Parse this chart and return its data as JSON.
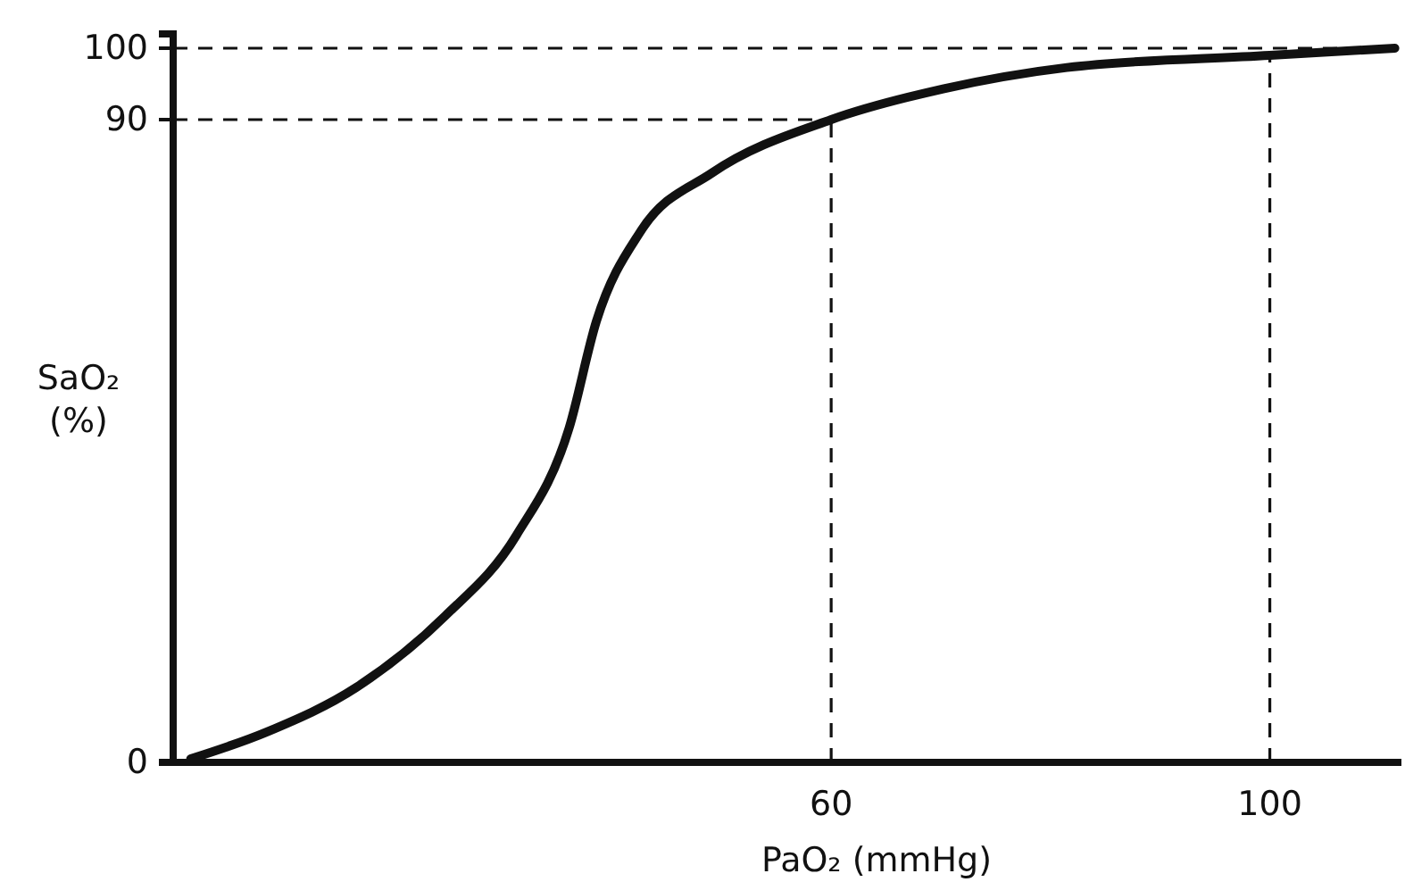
{
  "chart_data": {
    "type": "line",
    "xlabel": "PaO₂ (mmHg)",
    "ylabel": "SaO₂ (%)",
    "xlim": [
      0,
      112
    ],
    "ylim": [
      0,
      102
    ],
    "xticks": [
      60,
      100
    ],
    "yticks": [
      0,
      90,
      100
    ],
    "x": [
      1.6,
      8.6,
      16.7,
      24.8,
      31.3,
      36.1,
      38.6,
      42.6,
      49.1,
      60,
      70.2,
      81.5,
      100,
      111.4
    ],
    "series": [
      {
        "color": "#111111",
        "values": [
          0.5,
          4.3,
          10.5,
          20.5,
          31.8,
          46.8,
          61.8,
          74.3,
          82.5,
          90,
          94.3,
          97.3,
          99,
          100
        ]
      }
    ],
    "ref_lines": [
      {
        "axis": "y",
        "value": 100,
        "line_style": "dashed"
      },
      {
        "axis": "y",
        "value": 90,
        "line_style": "dashed"
      },
      {
        "axis": "x",
        "value": 60,
        "line_style": "dashed"
      },
      {
        "axis": "x",
        "value": 100,
        "line_style": "dashed"
      }
    ],
    "marker": "none",
    "line_style": "solid"
  }
}
